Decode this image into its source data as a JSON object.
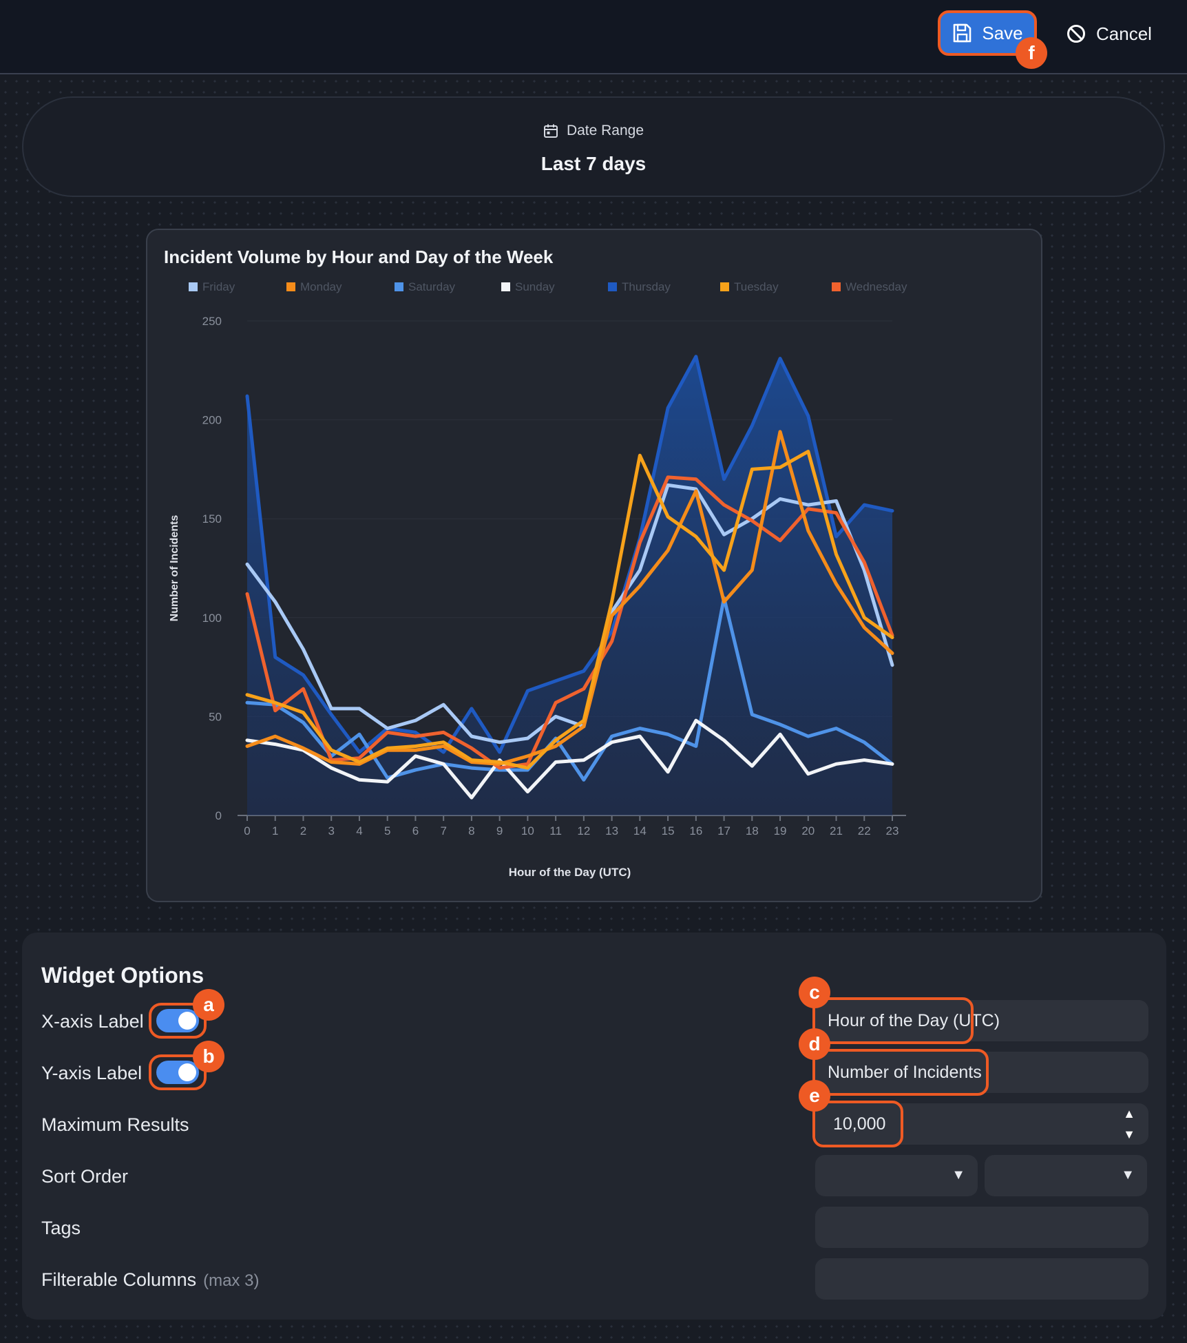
{
  "toolbar": {
    "save_label": "Save",
    "cancel_label": "Cancel"
  },
  "markers": {
    "a": "a",
    "b": "b",
    "c": "c",
    "d": "d",
    "e": "e",
    "f": "f"
  },
  "date_range": {
    "label": "Date Range",
    "value": "Last 7 days"
  },
  "chart": {
    "title": "Incident Volume by Hour and Day of the Week"
  },
  "chart_data": {
    "type": "line",
    "title": "Incident Volume by Hour and Day of the Week",
    "xlabel": "Hour of the Day (UTC)",
    "ylabel": "Number of Incidents",
    "ylim": [
      0,
      250
    ],
    "yticks": [
      0,
      50,
      100,
      150,
      200,
      250
    ],
    "x": [
      0,
      1,
      2,
      3,
      4,
      5,
      6,
      7,
      8,
      9,
      10,
      11,
      12,
      13,
      14,
      15,
      16,
      17,
      18,
      19,
      20,
      21,
      22,
      23
    ],
    "legend_position": "top",
    "series": [
      {
        "name": "Friday",
        "color": "#a9c9f5",
        "values": [
          127,
          108,
          84,
          54,
          54,
          44,
          48,
          56,
          40,
          37,
          39,
          50,
          45,
          103,
          124,
          167,
          165,
          142,
          150,
          160,
          157,
          159,
          124,
          76
        ]
      },
      {
        "name": "Monday",
        "color": "#f58c1a",
        "values": [
          35,
          40,
          34,
          27,
          26,
          33,
          33,
          35,
          27,
          26,
          30,
          35,
          45,
          101,
          116,
          134,
          164,
          108,
          124,
          194,
          144,
          117,
          95,
          82
        ]
      },
      {
        "name": "Saturday",
        "color": "#4f93e8",
        "values": [
          57,
          56,
          47,
          30,
          41,
          19,
          23,
          26,
          24,
          23,
          23,
          39,
          18,
          40,
          44,
          41,
          35,
          110,
          51,
          46,
          40,
          44,
          37,
          26
        ]
      },
      {
        "name": "Sunday",
        "color": "#f2f4f7",
        "values": [
          38,
          36,
          33,
          24,
          18,
          17,
          30,
          26,
          9,
          28,
          12,
          27,
          28,
          37,
          40,
          22,
          48,
          38,
          25,
          41,
          21,
          26,
          28,
          26
        ]
      },
      {
        "name": "Thursday",
        "color": "#1f5ac2",
        "values": [
          212,
          80,
          71,
          51,
          32,
          44,
          42,
          32,
          54,
          32,
          63,
          68,
          73,
          93,
          140,
          206,
          232,
          170,
          197,
          231,
          202,
          141,
          157,
          154
        ]
      },
      {
        "name": "Tuesday",
        "color": "#f7a21a",
        "values": [
          61,
          57,
          52,
          33,
          27,
          34,
          35,
          37,
          28,
          27,
          24,
          38,
          48,
          108,
          182,
          151,
          141,
          124,
          175,
          176,
          184,
          132,
          100,
          90
        ]
      },
      {
        "name": "Wednesday",
        "color": "#f0622e",
        "values": [
          112,
          53,
          64,
          28,
          29,
          42,
          40,
          42,
          34,
          24,
          26,
          57,
          64,
          88,
          138,
          171,
          170,
          157,
          149,
          139,
          155,
          153,
          128,
          91
        ]
      }
    ]
  },
  "options": {
    "title": "Widget Options",
    "x_axis_label": "X-axis Label",
    "y_axis_label": "Y-axis Label",
    "max_results": "Maximum Results",
    "sort_order": "Sort Order",
    "tags": "Tags",
    "filterable_columns": "Filterable Columns",
    "filterable_hint": "(max 3)",
    "x_axis_value": "Hour of the Day (UTC)",
    "y_axis_value": "Number of Incidents",
    "max_results_value": "10,000",
    "x_axis_toggle_on": true,
    "y_axis_toggle_on": true,
    "accent_color": "#ee5a24",
    "toggle_color": "#4a8df0"
  }
}
